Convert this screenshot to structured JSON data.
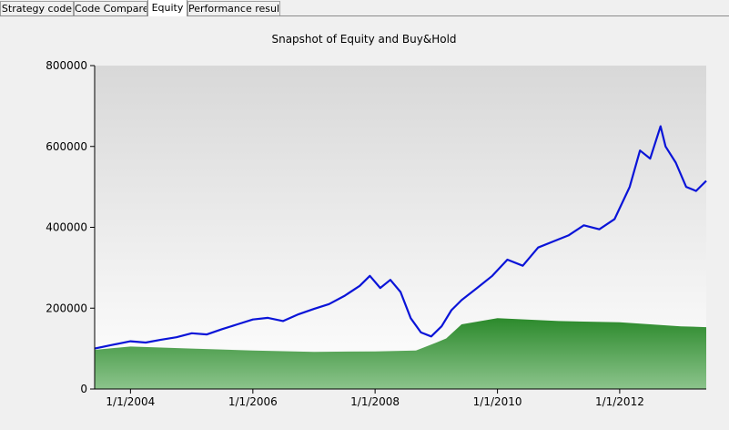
{
  "tabs": [
    {
      "label": "Strategy code",
      "active": false
    },
    {
      "label": "Code Compare",
      "active": false
    },
    {
      "label": "Equity",
      "active": true
    },
    {
      "label": "Performance results",
      "active": false
    }
  ],
  "colors": {
    "equity_line": "#0a14d8",
    "buyhold_fill_top": "#2c8a2c",
    "buyhold_fill_bottom": "#8cc48c",
    "plot_bg_top": "#d8d8d8",
    "plot_bg_bottom": "#ffffff"
  },
  "chart_data": {
    "type": "area",
    "title": "Snapshot of Equity and Buy&Hold",
    "xlabel": "",
    "ylabel": "",
    "ylim": [
      0,
      800000
    ],
    "yticks": [
      0,
      200000,
      400000,
      600000,
      800000
    ],
    "ytick_labels": [
      "0",
      "200000",
      "400000",
      "600000",
      "800000"
    ],
    "xlim": [
      "2003-06-01",
      "2013-06-01"
    ],
    "xticks": [
      "2004-01-01",
      "2006-01-01",
      "2008-01-01",
      "2010-01-01",
      "2012-01-01"
    ],
    "xtick_labels": [
      "1/1/2004",
      "1/1/2006",
      "1/1/2008",
      "1/1/2010",
      "1/1/2012"
    ],
    "grid": false,
    "series": [
      {
        "kind": "line",
        "x": [
          "2003-06-01",
          "2003-09-01",
          "2004-01-01",
          "2004-04-01",
          "2004-07-01",
          "2004-10-01",
          "2005-01-01",
          "2005-04-01",
          "2005-07-01",
          "2005-10-01",
          "2006-01-01",
          "2006-04-01",
          "2006-07-01",
          "2006-10-01",
          "2007-01-01",
          "2007-04-01",
          "2007-07-01",
          "2007-10-01",
          "2007-12-01",
          "2008-02-01",
          "2008-04-01",
          "2008-06-01",
          "2008-08-01",
          "2008-10-01",
          "2008-12-01",
          "2009-02-01",
          "2009-04-01",
          "2009-06-01",
          "2009-09-01",
          "2009-12-01",
          "2010-03-01",
          "2010-06-01",
          "2010-09-01",
          "2010-12-01",
          "2011-03-01",
          "2011-06-01",
          "2011-09-01",
          "2011-12-01",
          "2012-03-01",
          "2012-05-01",
          "2012-07-01",
          "2012-09-01",
          "2012-10-01",
          "2012-12-01",
          "2013-02-01",
          "2013-04-01",
          "2013-06-01"
        ],
        "values": [
          100000,
          108000,
          118000,
          115000,
          122000,
          128000,
          138000,
          135000,
          148000,
          160000,
          172000,
          176000,
          168000,
          185000,
          198000,
          210000,
          230000,
          255000,
          280000,
          250000,
          270000,
          240000,
          175000,
          140000,
          130000,
          155000,
          195000,
          220000,
          250000,
          280000,
          320000,
          305000,
          350000,
          365000,
          380000,
          405000,
          395000,
          420000,
          500000,
          590000,
          570000,
          650000,
          600000,
          560000,
          500000,
          490000,
          515000
        ]
      },
      {
        "kind": "area",
        "x": [
          "2003-06-01",
          "2004-01-01",
          "2005-01-01",
          "2006-01-01",
          "2007-01-01",
          "2008-01-01",
          "2008-09-01",
          "2009-01-01",
          "2009-03-01",
          "2009-06-01",
          "2010-01-01",
          "2011-01-01",
          "2012-01-01",
          "2013-01-01",
          "2013-06-01"
        ],
        "values": [
          97000,
          105000,
          100000,
          95000,
          92000,
          93000,
          95000,
          115000,
          125000,
          160000,
          175000,
          168000,
          165000,
          155000,
          153000
        ]
      }
    ]
  }
}
